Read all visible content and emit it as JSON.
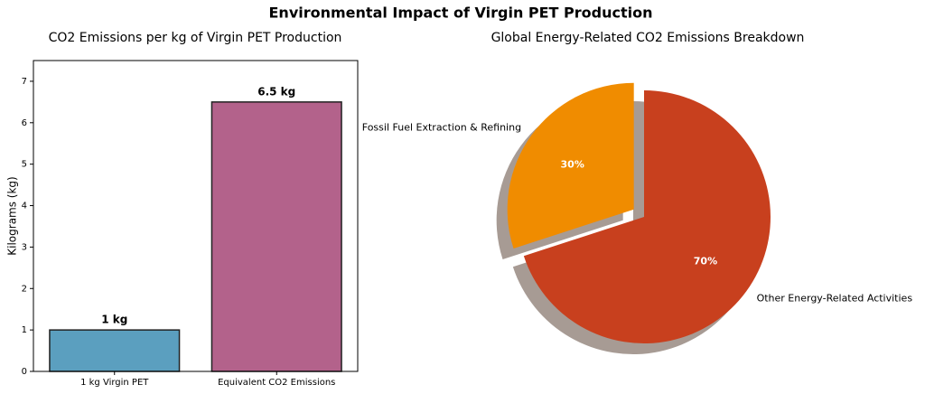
{
  "title": "Environmental Impact of Virgin PET Production",
  "chart_data": [
    {
      "type": "bar",
      "title": "CO2 Emissions per kg of Virgin PET Production",
      "ylabel": "Kilograms (kg)",
      "categories": [
        "1 kg Virgin PET",
        "Equivalent CO2 Emissions"
      ],
      "values": [
        1,
        6.5
      ],
      "value_labels": [
        "1 kg",
        "6.5 kg"
      ],
      "colors": [
        "#5b9fbf",
        "#b3628b"
      ],
      "ylim": [
        0,
        7.5
      ],
      "yticks": [
        0,
        1,
        2,
        3,
        4,
        5,
        6,
        7
      ]
    },
    {
      "type": "pie",
      "title": "Global Energy-Related CO2 Emissions Breakdown",
      "categories": [
        "Fossil Fuel Extraction & Refining",
        "Other Energy-Related Activities"
      ],
      "values": [
        30,
        70
      ],
      "value_labels": [
        "30%",
        "70%"
      ],
      "colors": [
        "#f08c00",
        "#c8401e"
      ],
      "explode": [
        0.1,
        0
      ],
      "startangle": 90,
      "shadow": true
    }
  ]
}
